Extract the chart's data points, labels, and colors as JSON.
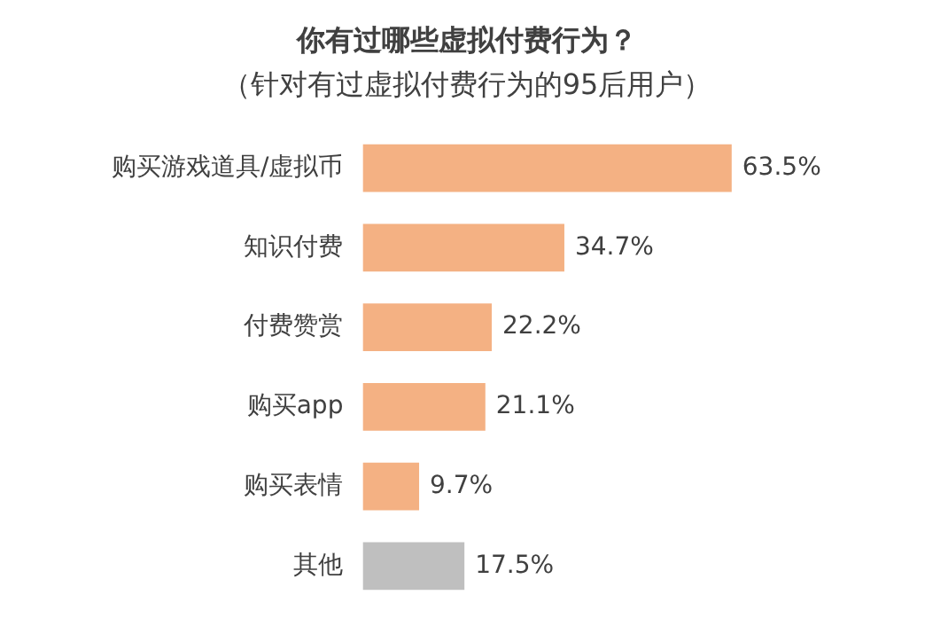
{
  "chart_data": {
    "type": "bar",
    "orientation": "horizontal",
    "title": "你有过哪些虚拟付费行为？",
    "subtitle": "（针对有过虚拟付费行为的95后用户）",
    "categories": [
      "购买游戏道具/虚拟币",
      "知识付费",
      "付费赞赏",
      "购买app",
      "购买表情",
      "其他"
    ],
    "values": [
      63.5,
      34.7,
      22.2,
      21.1,
      9.7,
      17.5
    ],
    "colors": [
      "#f4b183",
      "#f4b183",
      "#f4b183",
      "#f4b183",
      "#f4b183",
      "#bfbfbf"
    ],
    "value_labels": [
      "63.5%",
      "34.7%",
      "22.2%",
      "21.1%",
      "9.7%",
      "17.5%"
    ],
    "legend": false
  }
}
